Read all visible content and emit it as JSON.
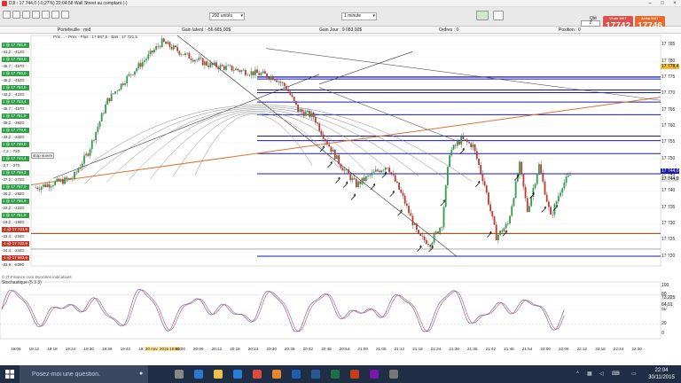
{
  "window": {
    "title": "DJI : 17 744,0 (-0,27%) 22:04:58 Wall Street au comptant (-)",
    "minimize_icon": "minimize-icon",
    "maximize_icon": "maximize-icon",
    "close_icon": "close-icon"
  },
  "toolbar": {
    "units_select": "200 unités",
    "interval_select": "1 minute",
    "qty_label": "Qté",
    "qty_value": "2",
    "sell": {
      "label": "Vente MKT",
      "price": "17742"
    },
    "buy": {
      "label": "Achat MKT",
      "price": "17746"
    }
  },
  "infobar": {
    "portfolio": "Portefeuille : mid",
    "latent_gain": "Gain latent : -56 665,00$",
    "day_gain": "Gain Jour : 9 083,00$",
    "orders": "Ordres : 0",
    "position": "Position : 0"
  },
  "chart": {
    "legend_top": "Prix ... - Prox - Plus : 17 807,5 - Bas : 17 721,5",
    "stoch_label": "Stochastique (5 3 3)",
    "watermark": "© IT-Finance.com  Données indicatives",
    "stop_label": "stop suivre",
    "last_price_tag": "17 744,0",
    "ma_tag": "17 778,4",
    "ma_tag2": "17 744,0",
    "stoch_tag1": "73,225",
    "stoch_tag2": "64,01",
    "price_axis": [
      "17 785",
      "17 780",
      "17 775",
      "17 770",
      "17 765",
      "17 760",
      "17 755",
      "17 750",
      "17 745",
      "17 740",
      "17 735",
      "17 730",
      "17 725",
      "17 720"
    ],
    "stoch_axis": [
      "100",
      "80",
      "50",
      "20",
      "0"
    ],
    "time_axis": [
      "19:06",
      "19:12",
      "19:18",
      "19:24",
      "19:30",
      "19:36",
      "19:42",
      "19:48",
      "30 nov. 2015 19:54",
      "20:00",
      "20:06",
      "20:12",
      "20:18",
      "20:24",
      "20:30",
      "20:36",
      "20:42",
      "20:48",
      "20:54",
      "21:00",
      "21:06",
      "21:12",
      "21:18",
      "21:24",
      "21:30",
      "21:36",
      "21:42",
      "21:48",
      "21:54",
      "22:00",
      "22:06",
      "22:12",
      "22:18",
      "22:24",
      "22:30"
    ]
  },
  "orders_list": [
    {
      "text": "1 @ 17 755,9",
      "type": "green"
    },
    {
      "text": "-41,2 : -4120",
      "type": "plain"
    },
    {
      "text": "1 @ 17 759,0",
      "type": "green"
    },
    {
      "text": "-46,7 : -4670",
      "type": "plain"
    },
    {
      "text": "1 @ 17 756,0",
      "type": "green"
    },
    {
      "text": "-46,2 : -4620",
      "type": "plain"
    },
    {
      "text": "1 @ 17 754,0",
      "type": "green"
    },
    {
      "text": "-42,2 : -4220",
      "type": "plain"
    },
    {
      "text": "1 @ 17 753,4",
      "type": "green"
    },
    {
      "text": "-46,7 : -4670",
      "type": "plain"
    },
    {
      "text": "1 @ 17 751,9",
      "type": "green"
    },
    {
      "text": "-39,2 : -3920",
      "type": "plain"
    },
    {
      "text": "1 @ 17 779,9",
      "type": "green"
    },
    {
      "text": "-33,2 : -3320",
      "type": "plain"
    },
    {
      "text": "1 @ 17 749,0",
      "type": "green"
    },
    {
      "text": "-7,2 : -720",
      "type": "plain"
    },
    {
      "text": "1 @ 17 744,4",
      "type": "green"
    },
    {
      "text": "-3,7 : -370",
      "type": "plain"
    },
    {
      "text": "1 @ 17 759,3",
      "type": "green"
    },
    {
      "text": "-27,2 : -2720",
      "type": "plain"
    },
    {
      "text": "1 @ 17 757,0",
      "type": "green"
    },
    {
      "text": "-26,2 : -2620",
      "type": "plain"
    },
    {
      "text": "1 @ 17 766,9",
      "type": "green"
    },
    {
      "text": "-22,2 : -2220",
      "type": "plain"
    },
    {
      "text": "1 @ 17 751,9",
      "type": "green"
    },
    {
      "text": "-19,2 : -1920",
      "type": "plain"
    },
    {
      "text": "-1 @ 17 723,9",
      "type": "red"
    },
    {
      "text": "-23,4 : -2340",
      "type": "plain"
    },
    {
      "text": "-1 @ 17 722,9",
      "type": "red"
    },
    {
      "text": "-24,4 : -2440",
      "type": "plain"
    },
    {
      "text": "-1 @ 17 663,6",
      "type": "red"
    },
    {
      "text": "-83,9 : -8390",
      "type": "plain"
    }
  ],
  "taskbar": {
    "search_placeholder": "Posez-moi une question.",
    "time": "22:04",
    "date": "30/11/2015",
    "apps": [
      "task-view-icon",
      "edge-icon",
      "explorer-icon",
      "store-icon",
      "chrome-icon",
      "firefox-icon",
      "outlook-icon",
      "word-icon",
      "excel-icon",
      "powerpoint-icon",
      "onenote-icon",
      "app-icon"
    ]
  },
  "colors": {
    "bull": "#2e9e4a",
    "bear": "#c0392b",
    "support": "#1a1aa6",
    "trend_orange": "#e07030",
    "ma_gray": "#888888"
  }
}
